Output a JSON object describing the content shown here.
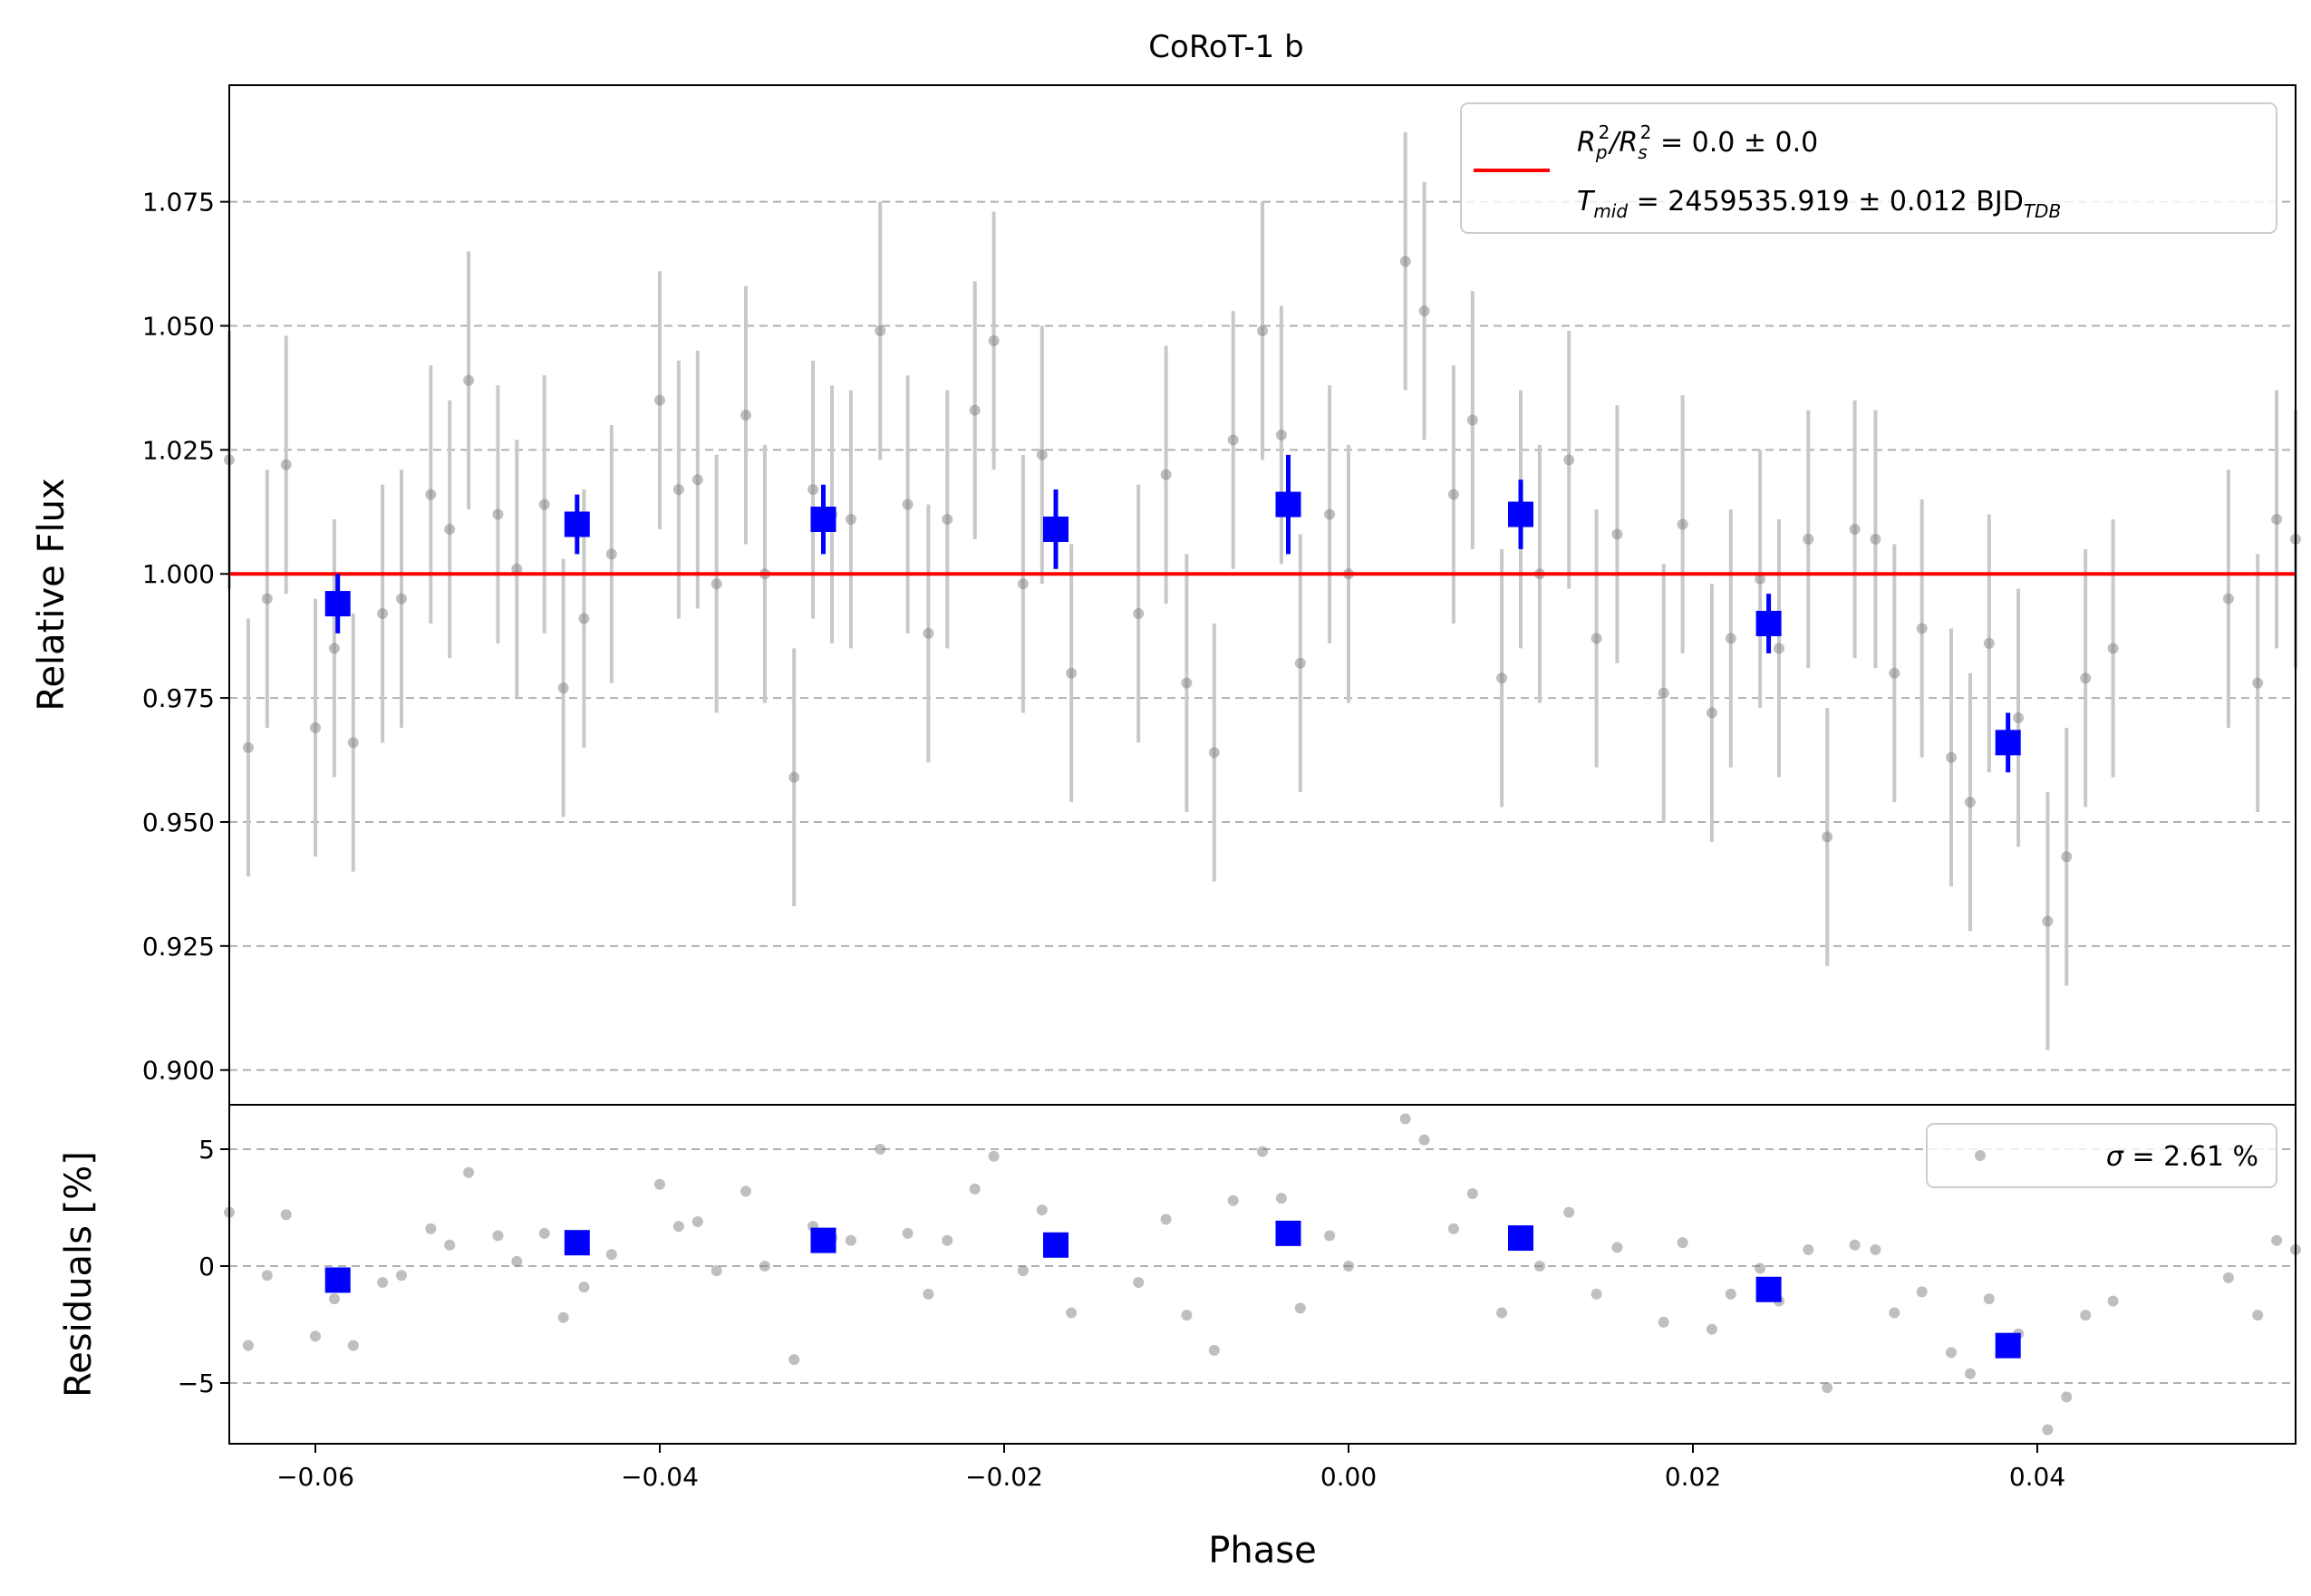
{
  "chart_data": {
    "type": "scatter",
    "title": "CoRoT-1 b",
    "xlabel": "Phase",
    "top": {
      "ylabel": "Relative Flux",
      "xlim": [
        -0.065,
        0.055
      ],
      "ylim": [
        0.893,
        1.0985
      ],
      "yticks": [
        0.9,
        0.925,
        0.95,
        0.975,
        1.0,
        1.025,
        1.05,
        1.075
      ],
      "ytick_labels": [
        "0.900",
        "0.925",
        "0.950",
        "0.975",
        "1.000",
        "1.025",
        "1.050",
        "1.075"
      ],
      "grid": "y-dashed",
      "model_level": 1.0,
      "model_color": "#ff0000",
      "legend": {
        "placement": "top-right",
        "line1_a": "R",
        "line1_b": "p",
        "line1_c": "2",
        "line1_d": "/R",
        "line1_e": "s",
        "line1_f": "2",
        "line1_g": " = 0.0 ± 0.0",
        "line2_a": "T",
        "line2_b": "mid",
        "line2_c": " = 2459535.919 ± 0.012 BJD",
        "line2_d": "TDB"
      }
    },
    "bottom": {
      "ylabel": "Residuals [%]",
      "ylim": [
        -7.6,
        6.9
      ],
      "yticks": [
        -5,
        0,
        5
      ],
      "ytick_labels": [
        "−5",
        "0",
        "5"
      ],
      "legend": {
        "placement": "top-right",
        "sigma_symbol": "σ",
        "text": " = 2.61 %"
      }
    },
    "xticks": [
      -0.06,
      -0.04,
      -0.02,
      0.0,
      0.02,
      0.04
    ],
    "xtick_labels": [
      "−0.06",
      "−0.04",
      "−0.02",
      "0.00",
      "0.02",
      "0.04"
    ],
    "raw_color": "#808080",
    "binned_color": "#0000ff",
    "raw_error": 0.026,
    "raw_x": [
      -0.065,
      -0.0639,
      -0.0628,
      -0.0617,
      -0.06,
      -0.0589,
      -0.0578,
      -0.0561,
      -0.055,
      -0.0533,
      -0.0522,
      -0.0511,
      -0.0494,
      -0.0483,
      -0.0467,
      -0.0456,
      -0.0444,
      -0.0428,
      -0.04,
      -0.0389,
      -0.0378,
      -0.0367,
      -0.035,
      -0.0339,
      -0.0322,
      -0.0311,
      -0.03,
      -0.0289,
      -0.0272,
      -0.0256,
      -0.0244,
      -0.0233,
      -0.0217,
      -0.0206,
      -0.0189,
      -0.0178,
      -0.0161,
      -0.0122,
      -0.0106,
      -0.0094,
      -0.0078,
      -0.0067,
      -0.005,
      -0.0039,
      -0.0028,
      -0.0011,
      0.0,
      0.0033,
      0.0044,
      0.0061,
      0.0072,
      0.0089,
      0.01,
      0.0111,
      0.0128,
      0.0144,
      0.0156,
      0.0183,
      0.0194,
      0.0211,
      0.0222,
      0.0239,
      0.025,
      0.0267,
      0.0278,
      0.0294,
      0.0306,
      0.0317,
      0.0333,
      0.035,
      0.0361,
      0.0372,
      0.0389,
      0.0406,
      0.0417,
      0.0428,
      0.0444,
      0.0511,
      0.0528,
      0.0539,
      0.055
    ],
    "raw_y": [
      1.023,
      0.965,
      0.995,
      1.022,
      0.969,
      0.985,
      0.966,
      0.992,
      0.995,
      1.016,
      1.009,
      1.039,
      1.012,
      1.001,
      1.014,
      0.977,
      0.991,
      1.004,
      1.035,
      1.017,
      1.019,
      0.998,
      1.032,
      1.0,
      0.959,
      1.017,
      1.012,
      1.011,
      1.049,
      1.014,
      0.988,
      1.011,
      1.033,
      1.047,
      0.998,
      1.024,
      0.98,
      0.992,
      1.02,
      0.978,
      0.964,
      1.027,
      1.049,
      1.028,
      0.982,
      1.012,
      1.0,
      1.063,
      1.053,
      1.016,
      1.031,
      0.979,
      1.011,
      1.0,
      1.023,
      0.987,
      1.008,
      0.976,
      1.01,
      0.972,
      0.987,
      0.999,
      0.985,
      1.007,
      0.947,
      1.009,
      1.007,
      0.98,
      0.989,
      0.963,
      0.954,
      0.986,
      0.971,
      0.93,
      0.943,
      0.979,
      0.985,
      0.995,
      0.978,
      1.011,
      1.007
    ],
    "res_x": [
      -0.065,
      -0.0639,
      -0.0628,
      -0.0617,
      -0.06,
      -0.0589,
      -0.0578,
      -0.0561,
      -0.055,
      -0.0533,
      -0.0522,
      -0.0511,
      -0.0494,
      -0.0483,
      -0.0467,
      -0.0456,
      -0.0444,
      -0.0428,
      -0.04,
      -0.0389,
      -0.0378,
      -0.0367,
      -0.035,
      -0.0339,
      -0.0322,
      -0.0311,
      -0.03,
      -0.0289,
      -0.0272,
      -0.0256,
      -0.0244,
      -0.0233,
      -0.0217,
      -0.0206,
      -0.0189,
      -0.0178,
      -0.0161,
      -0.0122,
      -0.0106,
      -0.0094,
      -0.0078,
      -0.0067,
      -0.005,
      -0.0039,
      -0.0028,
      -0.0011,
      0.0,
      0.0033,
      0.0044,
      0.0061,
      0.0072,
      0.0089,
      0.01,
      0.0111,
      0.0128,
      0.0144,
      0.0156,
      0.0183,
      0.0194,
      0.0211,
      0.0222,
      0.0239,
      0.025,
      0.0267,
      0.0278,
      0.0294,
      0.0306,
      0.0317,
      0.0333,
      0.035,
      0.0361,
      0.0372,
      0.0389,
      0.0406,
      0.0417,
      0.0428,
      0.0444,
      0.0511,
      0.0528,
      0.0539,
      0.055
    ],
    "res_y": [
      2.3,
      -3.4,
      -0.4,
      2.2,
      -3.0,
      -1.4,
      -3.4,
      -0.7,
      -0.4,
      1.6,
      0.9,
      4.0,
      1.3,
      0.2,
      1.4,
      -2.2,
      -0.9,
      0.5,
      3.5,
      1.7,
      1.9,
      -0.2,
      3.2,
      0.0,
      -4.0,
      1.7,
      1.2,
      1.1,
      5.0,
      1.4,
      -1.2,
      1.1,
      3.3,
      4.7,
      -0.2,
      2.4,
      -2.0,
      -0.7,
      2.0,
      -2.1,
      -3.6,
      2.8,
      4.9,
      2.9,
      -1.8,
      1.3,
      0.0,
      6.3,
      5.4,
      1.6,
      3.1,
      -2.0,
      1.2,
      0.0,
      2.3,
      -1.2,
      0.8,
      -2.4,
      1.0,
      -2.7,
      -1.2,
      -0.1,
      -1.5,
      0.7,
      -5.2,
      0.9,
      0.7,
      -2.0,
      -1.1,
      -3.7,
      -4.6,
      -1.4,
      -2.9,
      -7.0,
      -5.6,
      -2.1,
      -1.5,
      -0.5,
      -2.1,
      1.1,
      0.7
    ],
    "binned_x": [
      -0.0587,
      -0.0448,
      -0.0305,
      -0.017,
      -0.0035,
      0.01,
      0.0244,
      0.0383
    ],
    "binned_y": [
      0.994,
      1.01,
      1.011,
      1.009,
      1.014,
      1.012,
      0.99,
      0.966
    ],
    "binned_err": [
      0.006,
      0.006,
      0.007,
      0.008,
      0.01,
      0.007,
      0.006,
      0.006
    ],
    "binned_res": [
      -0.6,
      1.0,
      1.1,
      0.9,
      1.4,
      1.2,
      -1.0,
      -3.4
    ]
  }
}
